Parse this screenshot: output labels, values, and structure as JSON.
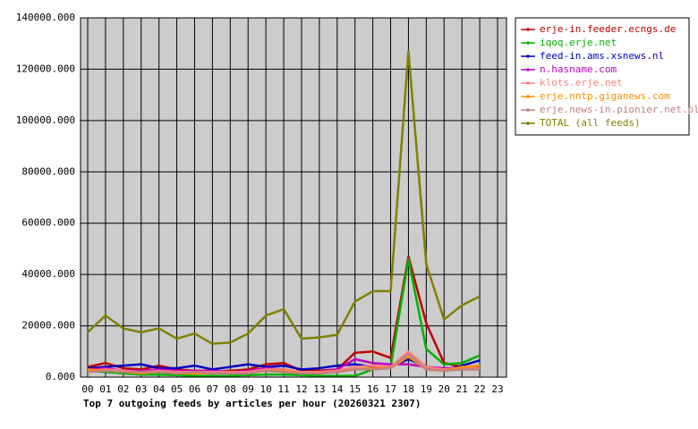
{
  "chart_data": {
    "type": "line",
    "title": "Top 7 outgoing feeds by articles per hour (20260321 2307)",
    "categories": [
      "00",
      "01",
      "02",
      "03",
      "04",
      "05",
      "06",
      "07",
      "08",
      "09",
      "10",
      "11",
      "12",
      "13",
      "14",
      "15",
      "16",
      "17",
      "18",
      "19",
      "20",
      "21",
      "22",
      "23"
    ],
    "ylim": [
      0,
      140000
    ],
    "yticks": [
      {
        "value": 0,
        "label": "0.000"
      },
      {
        "value": 20000,
        "label": "20000.000"
      },
      {
        "value": 40000,
        "label": "40000.000"
      },
      {
        "value": 60000,
        "label": "60000.000"
      },
      {
        "value": 80000,
        "label": "80000.000"
      },
      {
        "value": 100000,
        "label": "100000.000"
      },
      {
        "value": 120000,
        "label": "120000.000"
      },
      {
        "value": 140000,
        "label": "140000.000"
      }
    ],
    "grid": true,
    "series": [
      {
        "name": "erje-in.feeder.ecngs.de",
        "color": "#c00000",
        "values": [
          4000,
          5500,
          3500,
          3000,
          4500,
          3000,
          2500,
          2000,
          2500,
          3000,
          5000,
          5500,
          2500,
          2500,
          3000,
          9500,
          10000,
          7500,
          47000,
          21000,
          5500,
          4000,
          4000,
          null
        ]
      },
      {
        "name": "iqoq.erje.net",
        "color": "#00b000",
        "values": [
          2500,
          2000,
          1500,
          1000,
          1000,
          800,
          500,
          500,
          500,
          800,
          1000,
          1000,
          800,
          500,
          500,
          500,
          3000,
          4000,
          46000,
          11000,
          5000,
          5500,
          8500,
          null
        ]
      },
      {
        "name": "feed-in.ams.xsnews.nl",
        "color": "#0000c0",
        "values": [
          3500,
          4000,
          4500,
          5000,
          3500,
          3500,
          4500,
          3000,
          4000,
          5000,
          4000,
          4500,
          3000,
          3500,
          4500,
          5000,
          4000,
          4000,
          7000,
          4000,
          2500,
          4500,
          6500,
          null
        ]
      },
      {
        "name": "n.hasname.com",
        "color": "#c000c0",
        "values": [
          3000,
          3500,
          2500,
          2500,
          3000,
          2500,
          2500,
          2500,
          2000,
          2500,
          3500,
          3000,
          2000,
          2000,
          3000,
          7000,
          5500,
          5000,
          5000,
          4000,
          3500,
          3500,
          3000,
          null
        ]
      },
      {
        "name": "klots.erje.net",
        "color": "#ff8080",
        "values": [
          2500,
          3000,
          2500,
          2000,
          2500,
          2000,
          2000,
          2000,
          2000,
          2000,
          3000,
          3000,
          2000,
          2000,
          2500,
          4000,
          4500,
          4000,
          10000,
          4000,
          3000,
          3500,
          3500,
          null
        ]
      },
      {
        "name": "erje.nntp.giganews.com",
        "color": "#ff8c00",
        "values": [
          3000,
          2500,
          2000,
          1500,
          2000,
          1500,
          1500,
          1500,
          1500,
          1500,
          2500,
          2500,
          1500,
          1500,
          2000,
          3000,
          3500,
          3500,
          8000,
          3000,
          2500,
          4000,
          4500,
          null
        ]
      },
      {
        "name": "erje.news-in.pionier.net.pl",
        "color": "#c08080",
        "values": [
          2000,
          2500,
          2000,
          2000,
          2000,
          1500,
          2000,
          1500,
          1500,
          1500,
          2500,
          2000,
          1500,
          1500,
          2000,
          3000,
          3000,
          3500,
          9000,
          3000,
          2500,
          3000,
          3000,
          null
        ]
      },
      {
        "name": "TOTAL (all feeds)",
        "color": "#808000",
        "values": [
          17500,
          24000,
          19000,
          17500,
          19000,
          15000,
          17000,
          13000,
          13500,
          17000,
          24000,
          26500,
          15000,
          15500,
          16500,
          29500,
          33500,
          33500,
          127000,
          44000,
          22500,
          28000,
          31500,
          null
        ]
      }
    ]
  }
}
